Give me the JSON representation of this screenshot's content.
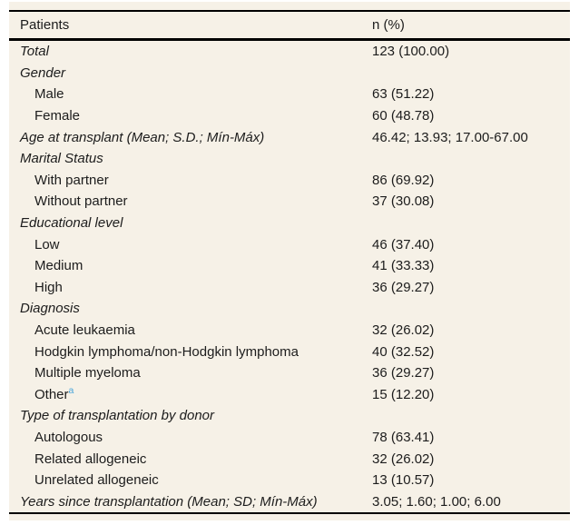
{
  "colors": {
    "table_background": "#f6f1e7",
    "border": "#000000",
    "text": "#1c1c1c",
    "footnote_marker": "#49a5da"
  },
  "table": {
    "columns": [
      "Patients",
      "n (%)"
    ],
    "rows": [
      {
        "label": "Total",
        "value": "123 (100.00)",
        "style": "group"
      },
      {
        "label": "Gender",
        "value": "",
        "style": "group"
      },
      {
        "label": "Male",
        "value": "63 (51.22)",
        "style": "item"
      },
      {
        "label": "Female",
        "value": "60 (48.78)",
        "style": "item"
      },
      {
        "label": "Age at transplant (Mean; S.D.; Mín-Máx)",
        "value": "46.42; 13.93; 17.00-67.00",
        "style": "group"
      },
      {
        "label": "Marital Status",
        "value": "",
        "style": "group"
      },
      {
        "label": "With partner",
        "value": "86 (69.92)",
        "style": "item"
      },
      {
        "label": "Without partner",
        "value": "37 (30.08)",
        "style": "item"
      },
      {
        "label": "Educational level",
        "value": "",
        "style": "group"
      },
      {
        "label": "Low",
        "value": "46 (37.40)",
        "style": "item"
      },
      {
        "label": "Medium",
        "value": "41 (33.33)",
        "style": "item"
      },
      {
        "label": "High",
        "value": "36 (29.27)",
        "style": "item"
      },
      {
        "label": "Diagnosis",
        "value": "",
        "style": "group"
      },
      {
        "label": "Acute leukaemia",
        "value": "32 (26.02)",
        "style": "item"
      },
      {
        "label": "Hodgkin lymphoma/non-Hodgkin lymphoma",
        "value": "40 (32.52)",
        "style": "item"
      },
      {
        "label": "Multiple myeloma",
        "value": "36 (29.27)",
        "style": "item"
      },
      {
        "label": "Other",
        "sup": "a",
        "value": "15 (12.20)",
        "style": "item"
      },
      {
        "label": "Type of transplantation by donor",
        "value": "",
        "style": "group"
      },
      {
        "label": "Autologous",
        "value": "78 (63.41)",
        "style": "item"
      },
      {
        "label": "Related allogeneic",
        "value": "32 (26.02)",
        "style": "item"
      },
      {
        "label": "Unrelated allogeneic",
        "value": "13 (10.57)",
        "style": "item"
      },
      {
        "label": "Years since transplantation (Mean; SD; Mín-Máx)",
        "value": "3.05; 1.60; 1.00; 6.00",
        "style": "group"
      }
    ]
  }
}
